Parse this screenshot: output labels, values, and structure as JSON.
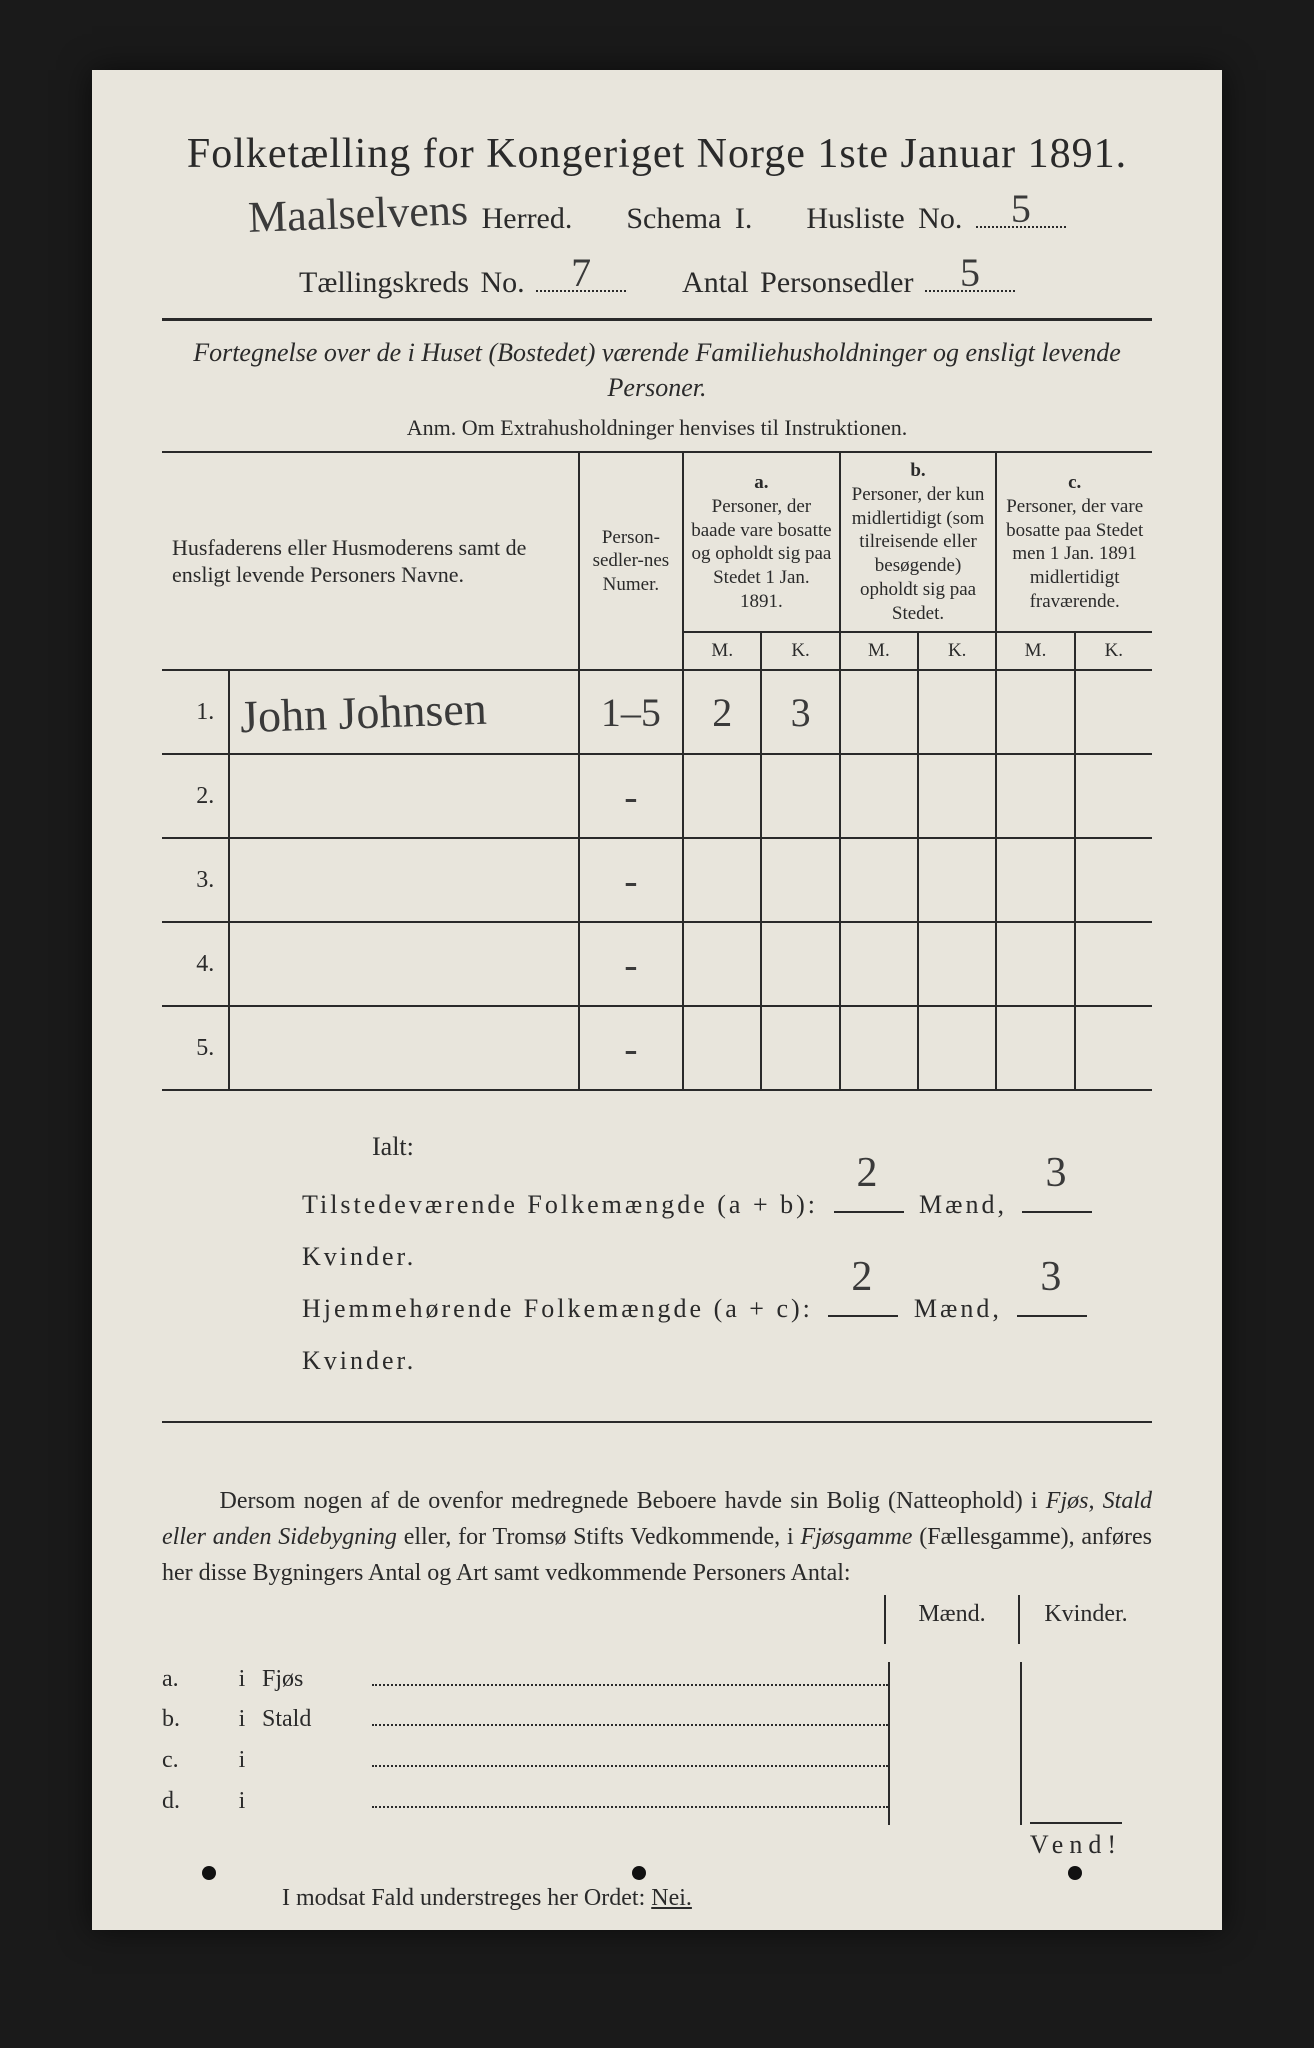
{
  "colors": {
    "page_bg": "#1a1a1a",
    "paper_bg": "#e8e5dc",
    "ink": "#2a2a2a",
    "handwriting": "#3a3a3a"
  },
  "header": {
    "title": "Folketælling for Kongeriget Norge 1ste Januar 1891.",
    "herred_handwritten": "Maalselvens",
    "herred_label": "Herred.",
    "schema_label": "Schema I.",
    "husliste_label": "Husliste No.",
    "husliste_no": "5",
    "kreds_label": "Tællingskreds No.",
    "kreds_no": "7",
    "antal_label": "Antal Personsedler",
    "antal_no": "5"
  },
  "subtitle": "Fortegnelse over de i Huset (Bostedet) værende Familiehusholdninger og ensligt levende Personer.",
  "anm": "Anm. Om Extrahusholdninger henvises til Instruktionen.",
  "table": {
    "head_name": "Husfaderens eller Husmoderens samt de ensligt levende Personers Navne.",
    "head_pers": "Person-sedler-nes Numer.",
    "col_a_top": "a.",
    "col_a": "Personer, der baade vare bosatte og opholdt sig paa Stedet 1 Jan. 1891.",
    "col_b_top": "b.",
    "col_b": "Personer, der kun midlertidigt (som tilreisende eller besøgende) opholdt sig paa Stedet.",
    "col_c_top": "c.",
    "col_c": "Personer, der vare bosatte paa Stedet men 1 Jan. 1891 midlertidigt fraværende.",
    "m": "M.",
    "k": "K.",
    "rows": [
      {
        "num": "1.",
        "name": "John Johnsen",
        "pers": "1–5",
        "a_m": "2",
        "a_k": "3",
        "b_m": "",
        "b_k": "",
        "c_m": "",
        "c_k": ""
      },
      {
        "num": "2.",
        "name": "",
        "pers": "-",
        "a_m": "",
        "a_k": "",
        "b_m": "",
        "b_k": "",
        "c_m": "",
        "c_k": ""
      },
      {
        "num": "3.",
        "name": "",
        "pers": "-",
        "a_m": "",
        "a_k": "",
        "b_m": "",
        "b_k": "",
        "c_m": "",
        "c_k": ""
      },
      {
        "num": "4.",
        "name": "",
        "pers": "-",
        "a_m": "",
        "a_k": "",
        "b_m": "",
        "b_k": "",
        "c_m": "",
        "c_k": ""
      },
      {
        "num": "5.",
        "name": "",
        "pers": "-",
        "a_m": "",
        "a_k": "",
        "b_m": "",
        "b_k": "",
        "c_m": "",
        "c_k": ""
      }
    ]
  },
  "totals": {
    "ialt": "Ialt:",
    "line1_label": "Tilstedeværende Folkemængde (a + b):",
    "line2_label": "Hjemmehørende Folkemængde (a + c):",
    "maend": "Mænd,",
    "kvinder": "Kvinder.",
    "ab_m": "2",
    "ab_k": "3",
    "ac_m": "2",
    "ac_k": "3"
  },
  "para": {
    "text1": "Dersom nogen af de ovenfor medregnede Beboere havde sin Bolig (Natteophold) i ",
    "i1": "Fjøs, Stald eller anden Sidebygning",
    "text2": " eller, for Tromsø Stifts Vedkommende, i ",
    "i2": "Fjøsgamme",
    "text3": " (Fællesgamme), anføres her disse Bygningers Antal og Art samt vedkommende Personers Antal:"
  },
  "fjos": {
    "head_m": "Mænd.",
    "head_k": "Kvinder.",
    "rows": [
      {
        "lab": "a.",
        "i": "i",
        "name": "Fjøs"
      },
      {
        "lab": "b.",
        "i": "i",
        "name": "Stald"
      },
      {
        "lab": "c.",
        "i": "i",
        "name": ""
      },
      {
        "lab": "d.",
        "i": "i",
        "name": ""
      }
    ]
  },
  "nei": {
    "text": "I modsat Fald understreges her Ordet: ",
    "word": "Nei."
  },
  "vend": "Vend!"
}
